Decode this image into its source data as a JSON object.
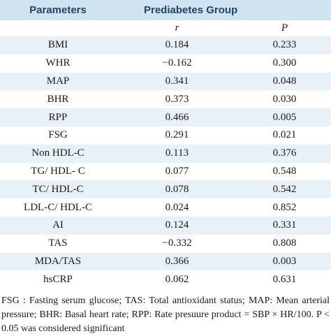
{
  "header": {
    "parameters": "Parameters",
    "group": "Prediabetes Group"
  },
  "subheader": {
    "r": "r",
    "p": "P"
  },
  "rows": [
    {
      "name": "BMI",
      "r": "0.184",
      "p": "0.233"
    },
    {
      "name": "WHR",
      "r": "−0.162",
      "p": "0.300"
    },
    {
      "name": "MAP",
      "r": "0.341",
      "p": "0.048"
    },
    {
      "name": "BHR",
      "r": "0.373",
      "p": "0.030"
    },
    {
      "name": "RPP",
      "r": "0.466",
      "p": "0.005"
    },
    {
      "name": "FSG",
      "r": "0.291",
      "p": "0.021"
    },
    {
      "name": "Non HDL-C",
      "r": "0.113",
      "p": "0.376"
    },
    {
      "name": "TG/ HDL- C",
      "r": "0.077",
      "p": "0.548"
    },
    {
      "name": "TC/ HDL-C",
      "r": "0.078",
      "p": "0.542"
    },
    {
      "name": "LDL-C/ HDL-C",
      "r": "0.024",
      "p": "0.852"
    },
    {
      "name": "AI",
      "r": "0.124",
      "p": "0.331"
    },
    {
      "name": "TAS",
      "r": "−0.332",
      "p": "0.808"
    },
    {
      "name": "MDA/TAS",
      "r": "0.366",
      "p": "0.003"
    },
    {
      "name": "hsCRP",
      "r": "0.062",
      "p": "0.631"
    }
  ],
  "footnote": "FSG : Fasting serum glucose; TAS: Total antioxidant status; MAP: Mean arterial pressure; BHR: Basal heart rate; RPP: Rate presuure product = SBP × HR/100. P < 0.05 was considered significant",
  "colors": {
    "header_band": "#cfe3f0",
    "header_text": "#1f4566",
    "row_band": "#e8f1f8"
  }
}
